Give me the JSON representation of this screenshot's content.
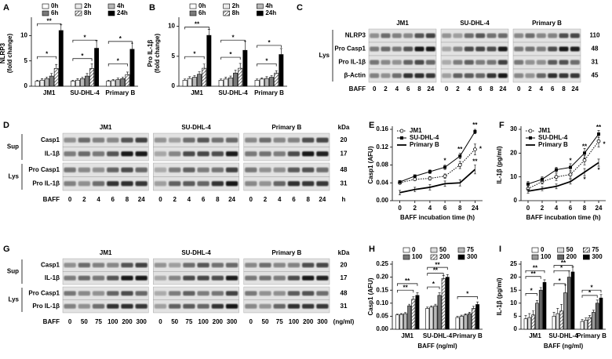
{
  "chart_data": [
    {
      "letter": "A",
      "type": "bar",
      "ylabel": [
        "NLRP3",
        "(fold change)"
      ],
      "categories": [
        "JM1",
        "SU-DHL-4",
        "Primary B"
      ],
      "ylim": [
        0,
        13
      ],
      "yticks": [
        0,
        5,
        10
      ],
      "series": [
        {
          "name": "0h",
          "color": "#ffffff",
          "values": [
            1,
            1,
            1
          ],
          "errors": [
            0.2,
            0.2,
            0.2
          ]
        },
        {
          "name": "2h",
          "color": "#ececec",
          "values": [
            1.2,
            1.2,
            1.1
          ],
          "errors": [
            0.3,
            0.3,
            0.2
          ]
        },
        {
          "name": "4h",
          "color": "#b8b8b8",
          "values": [
            1.5,
            1.5,
            1.3
          ],
          "errors": [
            0.3,
            0.3,
            0.3
          ]
        },
        {
          "name": "6h",
          "color": "#7a7a7a",
          "values": [
            2,
            2,
            1.5
          ],
          "errors": [
            0.5,
            0.5,
            0.3
          ]
        },
        {
          "name": "8h",
          "color": "#cccccc",
          "pattern": "hatch",
          "values": [
            3.5,
            3.5,
            2.3
          ],
          "errors": [
            0.8,
            0.9,
            0.5
          ]
        },
        {
          "name": "24h",
          "color": "#000000",
          "values": [
            11,
            7.5,
            7.3
          ],
          "errors": [
            1.2,
            1.5,
            1.2
          ]
        }
      ],
      "annotations": [
        "**",
        "*",
        "*",
        "*",
        "*",
        "*"
      ]
    },
    {
      "letter": "B",
      "type": "bar",
      "ylabel": [
        "Pro IL-1β",
        "(fold change)"
      ],
      "categories": [
        "JM1",
        "SU-DHL-4",
        "Primary B"
      ],
      "ylim": [
        0,
        11
      ],
      "yticks": [
        0,
        5,
        10
      ],
      "series": [
        {
          "name": "0h",
          "color": "#ffffff",
          "values": [
            1,
            1,
            1
          ],
          "errors": [
            0.2,
            0.2,
            0.2
          ]
        },
        {
          "name": "2h",
          "color": "#ececec",
          "values": [
            1.3,
            1.2,
            1.2
          ],
          "errors": [
            0.3,
            0.3,
            0.2
          ]
        },
        {
          "name": "4h",
          "color": "#b8b8b8",
          "values": [
            1.5,
            1.4,
            1.3
          ],
          "errors": [
            0.3,
            0.3,
            0.3
          ]
        },
        {
          "name": "6h",
          "color": "#7a7a7a",
          "values": [
            2,
            2.2,
            1.5
          ],
          "errors": [
            0.4,
            0.5,
            0.3
          ]
        },
        {
          "name": "8h",
          "color": "#cccccc",
          "pattern": "hatch",
          "values": [
            3,
            3,
            2.2
          ],
          "errors": [
            0.7,
            0.8,
            0.4
          ]
        },
        {
          "name": "24h",
          "color": "#000000",
          "values": [
            8.5,
            6,
            5.3
          ],
          "errors": [
            1,
            1.5,
            1
          ]
        }
      ],
      "annotations": [
        "**",
        "*",
        "*",
        "*",
        "*",
        "*"
      ]
    },
    {
      "letter": "E",
      "type": "line",
      "ylabel": [
        "Casp1 (AFU)"
      ],
      "xlabel": "BAFF incubation time (h)",
      "categories": [
        "0",
        "2",
        "4",
        "6",
        "8",
        "24"
      ],
      "ylim": [
        0,
        0.16
      ],
      "yticks": [
        {
          "value": 0,
          "label": "0.00"
        },
        {
          "value": 0.04,
          "label": "0.04"
        },
        {
          "value": 0.08,
          "label": "0.08"
        },
        {
          "value": 0.12,
          "label": "0.12"
        },
        {
          "value": 0.16,
          "label": "0.16"
        }
      ],
      "series": [
        {
          "name": "JM1",
          "color": "#000000",
          "style": "dotted",
          "marker": "circle-open",
          "values": [
            0.04,
            0.048,
            0.05,
            0.055,
            0.08,
            0.115
          ],
          "errors": [
            0.003,
            0.003,
            0.004,
            0.005,
            0.008,
            0.012
          ]
        },
        {
          "name": "SU-DHL-4",
          "color": "#000000",
          "style": "solid",
          "marker": "square",
          "values": [
            0.042,
            0.055,
            0.065,
            0.075,
            0.1,
            0.155
          ],
          "errors": [
            0.003,
            0.003,
            0.004,
            0.005,
            0.006,
            0.005
          ]
        },
        {
          "name": "Primary B",
          "color": "#000000",
          "style": "thick",
          "marker": "none",
          "values": [
            0.018,
            0.025,
            0.03,
            0.038,
            0.04,
            0.07
          ],
          "errors": [
            0.005,
            0.005,
            0.006,
            0.006,
            0.007,
            0.01
          ]
        }
      ],
      "annotations": [
        "*",
        "**",
        "*",
        "**",
        "**",
        "*"
      ]
    },
    {
      "letter": "F",
      "type": "line",
      "ylabel": [
        "IL-1β (pg/ml)"
      ],
      "xlabel": "BAFF incubation time (h)",
      "categories": [
        "0",
        "2",
        "4",
        "6",
        "8",
        "24"
      ],
      "ylim": [
        0,
        30
      ],
      "yticks": [
        0,
        10,
        20,
        30
      ],
      "series": [
        {
          "name": "JM1",
          "color": "#000000",
          "style": "dotted",
          "marker": "circle-open",
          "values": [
            5,
            8,
            10,
            11,
            17,
            25
          ],
          "errors": [
            1,
            1,
            1.5,
            1.5,
            2,
            2.5
          ]
        },
        {
          "name": "SU-DHL-4",
          "color": "#000000",
          "style": "solid",
          "marker": "square",
          "values": [
            7,
            9,
            13,
            14,
            20,
            28
          ],
          "errors": [
            1,
            1,
            1,
            1.5,
            2,
            1.5
          ]
        },
        {
          "name": "Primary B",
          "color": "#000000",
          "style": "thick",
          "marker": "none",
          "values": [
            4,
            5,
            6,
            8,
            12,
            16
          ],
          "errors": [
            0.8,
            0.8,
            1,
            1,
            1.5,
            1.5
          ]
        }
      ],
      "annotations": [
        "*",
        "**",
        "*",
        "**",
        "*",
        "*"
      ]
    },
    {
      "letter": "H",
      "type": "bar",
      "ylabel": [
        "Casp1 (AFU)"
      ],
      "xlabel": "BAFF (ng/ml)",
      "categories": [
        "JM1",
        "SU-DHL-4",
        "Primary B"
      ],
      "ylim": [
        0,
        0.25
      ],
      "yticks": [
        {
          "value": 0,
          "label": "0.00"
        },
        {
          "value": 0.05,
          "label": "0.05"
        },
        {
          "value": 0.1,
          "label": "0.10"
        },
        {
          "value": 0.15,
          "label": "0.15"
        },
        {
          "value": 0.2,
          "label": "0.20"
        },
        {
          "value": 0.25,
          "label": "0.25"
        }
      ],
      "series": [
        {
          "name": "0",
          "color": "#ffffff",
          "values": [
            0.055,
            0.08,
            0.045
          ],
          "errors": [
            0.003,
            0.005,
            0.004
          ]
        },
        {
          "name": "50",
          "color": "#dcdcdc",
          "values": [
            0.057,
            0.085,
            0.05
          ],
          "errors": [
            0.003,
            0.005,
            0.004
          ]
        },
        {
          "name": "75",
          "color": "#b8b8b8",
          "values": [
            0.06,
            0.09,
            0.055
          ],
          "errors": [
            0.004,
            0.006,
            0.004
          ]
        },
        {
          "name": "100",
          "color": "#777777",
          "values": [
            0.09,
            0.13,
            0.06
          ],
          "errors": [
            0.006,
            0.01,
            0.005
          ]
        },
        {
          "name": "200",
          "color": "#cccccc",
          "pattern": "hatch",
          "values": [
            0.115,
            0.195,
            0.08
          ],
          "errors": [
            0.01,
            0.012,
            0.008
          ]
        },
        {
          "name": "300",
          "color": "#000000",
          "values": [
            0.13,
            0.2,
            0.095
          ],
          "errors": [
            0.01,
            0.01,
            0.01
          ]
        }
      ],
      "annotations": [
        "**",
        "**",
        "**",
        "**",
        "*",
        "*"
      ]
    },
    {
      "letter": "I",
      "type": "bar",
      "ylabel": [
        "IL-1β (pg/ml)"
      ],
      "xlabel": "BAFF (ng/ml)",
      "categories": [
        "JM1",
        "SU-DHL-4",
        "Primary B"
      ],
      "ylim": [
        0,
        25
      ],
      "yticks": [
        0,
        5,
        10,
        15,
        20,
        25
      ],
      "series": [
        {
          "name": "0",
          "color": "#ffffff",
          "values": [
            4,
            5,
            3
          ],
          "errors": [
            1.2,
            1.5,
            0.8
          ]
        },
        {
          "name": "50",
          "color": "#dcdcdc",
          "values": [
            4.5,
            6,
            3.5
          ],
          "errors": [
            1.5,
            2,
            0.8
          ]
        },
        {
          "name": "75",
          "color": "#cccccc",
          "pattern": "hatch",
          "values": [
            5.5,
            7,
            4.5
          ],
          "errors": [
            1.5,
            2.5,
            0.8
          ]
        },
        {
          "name": "100",
          "color": "#999999",
          "values": [
            10,
            14,
            6.5
          ],
          "errors": [
            1,
            3,
            0.8
          ]
        },
        {
          "name": "200",
          "color": "#666666",
          "values": [
            15,
            20,
            10
          ],
          "errors": [
            1,
            2.5,
            1.2
          ]
        },
        {
          "name": "300",
          "color": "#000000",
          "values": [
            18,
            22,
            12
          ],
          "errors": [
            1,
            2,
            1.3
          ]
        }
      ],
      "annotations": [
        "**",
        "**",
        "*",
        "**",
        "*",
        "*",
        "*",
        "*"
      ]
    }
  ],
  "blots": [
    {
      "letter": "C",
      "groups": [
        "JM1",
        "SU-DHL-4",
        "Primary B"
      ],
      "sections": [
        {
          "label": "Lys",
          "rows": [
            {
              "label": "NLRP3",
              "kda": 110
            },
            {
              "label": "Pro Casp1",
              "kda": 48
            },
            {
              "label": "Pro IL-1β",
              "kda": 31
            },
            {
              "label": "β-Actin",
              "kda": 45
            }
          ]
        }
      ],
      "lane_title": "BAFF",
      "lanes": [
        0,
        2,
        4,
        6,
        8,
        24
      ]
    },
    {
      "letter": "D",
      "groups": [
        "JM1",
        "SU-DHL-4",
        "Primary B"
      ],
      "kda_label": "kDa",
      "sections": [
        {
          "label": "Sup",
          "rows": [
            {
              "label": "Casp1",
              "kda": 20
            },
            {
              "label": "IL-1β",
              "kda": 17
            }
          ]
        },
        {
          "label": "Lys",
          "rows": [
            {
              "label": "Pro Casp1",
              "kda": 48
            },
            {
              "label": "Pro IL-1β",
              "kda": 31
            }
          ]
        }
      ],
      "lane_title": "BAFF",
      "lanes": [
        0,
        2,
        4,
        6,
        8,
        24
      ],
      "lane_unit": "h"
    },
    {
      "letter": "G",
      "groups": [
        "JM1",
        "SU-DHL-4",
        "Primary B"
      ],
      "kda_label": "kDa",
      "sections": [
        {
          "label": "Sup",
          "rows": [
            {
              "label": "Casp1",
              "kda": 20
            },
            {
              "label": "IL-1β",
              "kda": 17
            }
          ]
        },
        {
          "label": "Lys",
          "rows": [
            {
              "label": "Pro Casp1",
              "kda": 48
            },
            {
              "label": "Pro IL-1β",
              "kda": 31
            }
          ]
        }
      ],
      "lane_title": "BAFF",
      "lanes": [
        0,
        50,
        75,
        100,
        200,
        300
      ],
      "lane_unit": "(ng/ml)"
    }
  ]
}
